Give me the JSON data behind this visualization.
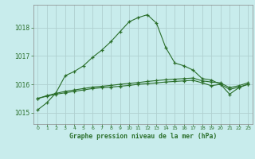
{
  "title": "Graphe pression niveau de la mer (hPa)",
  "bg_color": "#c8ecec",
  "grid_color": "#b0d0d0",
  "line_color": "#2a6e2a",
  "xlim": [
    -0.5,
    23.5
  ],
  "ylim": [
    1014.6,
    1018.8
  ],
  "xticks": [
    0,
    1,
    2,
    3,
    4,
    5,
    6,
    7,
    8,
    9,
    10,
    11,
    12,
    13,
    14,
    15,
    16,
    17,
    18,
    19,
    20,
    21,
    22,
    23
  ],
  "yticks": [
    1015,
    1016,
    1017,
    1018
  ],
  "series1_x": [
    0,
    1,
    2,
    3,
    4,
    5,
    6,
    7,
    8,
    9,
    10,
    11,
    12,
    13,
    14,
    15,
    16,
    17,
    18,
    19,
    20,
    21,
    22,
    23
  ],
  "series1_y": [
    1015.1,
    1015.35,
    1015.7,
    1016.3,
    1016.45,
    1016.65,
    1016.95,
    1017.2,
    1017.5,
    1017.85,
    1018.2,
    1018.35,
    1018.45,
    1018.15,
    1017.3,
    1016.75,
    1016.65,
    1016.5,
    1016.2,
    1016.15,
    1016.0,
    1015.65,
    1015.88,
    1016.0
  ],
  "series2_x": [
    0,
    1,
    2,
    3,
    4,
    5,
    6,
    7,
    8,
    9,
    10,
    11,
    12,
    13,
    14,
    15,
    16,
    17,
    18,
    19,
    20,
    21,
    22,
    23
  ],
  "series2_y": [
    1015.5,
    1015.58,
    1015.65,
    1015.7,
    1015.75,
    1015.8,
    1015.85,
    1015.88,
    1015.9,
    1015.93,
    1015.96,
    1016.0,
    1016.02,
    1016.05,
    1016.08,
    1016.1,
    1016.12,
    1016.14,
    1016.05,
    1015.95,
    1016.0,
    1015.82,
    1015.9,
    1016.0
  ],
  "series3_x": [
    0,
    1,
    2,
    3,
    4,
    5,
    6,
    7,
    8,
    9,
    10,
    11,
    12,
    13,
    14,
    15,
    16,
    17,
    18,
    19,
    20,
    21,
    22,
    23
  ],
  "series3_y": [
    1015.5,
    1015.6,
    1015.68,
    1015.75,
    1015.8,
    1015.85,
    1015.9,
    1015.93,
    1015.96,
    1016.0,
    1016.03,
    1016.06,
    1016.1,
    1016.13,
    1016.16,
    1016.18,
    1016.2,
    1016.22,
    1016.12,
    1016.08,
    1016.05,
    1015.88,
    1015.95,
    1016.05
  ]
}
